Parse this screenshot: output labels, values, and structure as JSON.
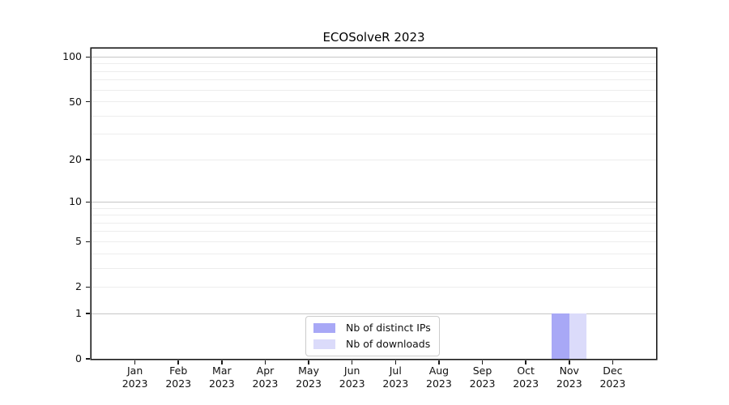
{
  "chart_data": {
    "type": "bar",
    "title": "ECOSolveR 2023",
    "categories": [
      [
        "Jan",
        "2023"
      ],
      [
        "Feb",
        "2023"
      ],
      [
        "Mar",
        "2023"
      ],
      [
        "Apr",
        "2023"
      ],
      [
        "May",
        "2023"
      ],
      [
        "Jun",
        "2023"
      ],
      [
        "Jul",
        "2023"
      ],
      [
        "Aug",
        "2023"
      ],
      [
        "Sep",
        "2023"
      ],
      [
        "Oct",
        "2023"
      ],
      [
        "Nov",
        "2023"
      ],
      [
        "Dec",
        "2023"
      ]
    ],
    "series": [
      {
        "name": "Nb of distinct IPs",
        "color": "#a8a8f6",
        "values": [
          0,
          0,
          0,
          0,
          0,
          0,
          0,
          0,
          0,
          0,
          1,
          0
        ]
      },
      {
        "name": "Nb of downloads",
        "color": "#dbdbfa",
        "values": [
          0,
          0,
          0,
          0,
          0,
          0,
          0,
          0,
          0,
          0,
          1,
          0
        ]
      }
    ],
    "y_scale": "log1p",
    "ylim": [
      0,
      114
    ],
    "y_tick_values": [
      0,
      1,
      2,
      5,
      10,
      20,
      50,
      100
    ],
    "gridlines": {
      "major": [
        1,
        10,
        100
      ],
      "minor": [
        2,
        3,
        4,
        5,
        6,
        7,
        8,
        9,
        20,
        30,
        40,
        50,
        60,
        70,
        80,
        90
      ]
    },
    "grid": true,
    "legend_position": "lower center",
    "xlabel": "",
    "ylabel": ""
  }
}
